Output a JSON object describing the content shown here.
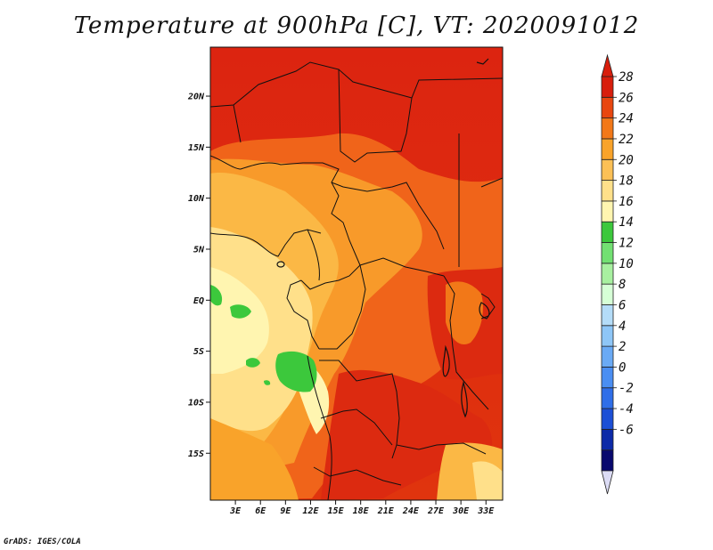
{
  "title": "Temperature at 900hPa [C], VT: 2020091012",
  "credit": "GrADS: IGES/COLA",
  "map": {
    "lat_ticks": [
      "20N",
      "15N",
      "10N",
      "5N",
      "EQ",
      "5S",
      "10S",
      "15S"
    ],
    "lon_ticks": [
      "3E",
      "6E",
      "9E",
      "12E",
      "15E",
      "18E",
      "21E",
      "24E",
      "27E",
      "30E",
      "33E"
    ],
    "lat_values": [
      20,
      15,
      10,
      5,
      0,
      -5,
      -10,
      -15
    ],
    "lon_values": [
      3,
      6,
      9,
      12,
      15,
      18,
      21,
      24,
      27,
      30,
      33
    ],
    "lon_range": [
      0,
      35
    ],
    "lat_range": [
      -19.6,
      24.8
    ]
  },
  "colorbar": {
    "labels": [
      "28",
      "26",
      "24",
      "22",
      "20",
      "18",
      "16",
      "14",
      "12",
      "10",
      "8",
      "6",
      "4",
      "2",
      "0",
      "-2",
      "-4",
      "-6"
    ],
    "colors": [
      "#08086e",
      "#0c2aa8",
      "#1c4fd6",
      "#2f6ee8",
      "#4a8ef2",
      "#6aaaf5",
      "#8ec6f7",
      "#b4dcf8",
      "#d6ffd6",
      "#a8f0a0",
      "#72e072",
      "#3cc83c",
      "#fff5b0",
      "#ffe08a",
      "#fcc056",
      "#f9a32a",
      "#f27818",
      "#e8460f",
      "#d81e0c"
    ],
    "under_color": "#dcdcf5",
    "over_color": "#d81e0c"
  }
}
